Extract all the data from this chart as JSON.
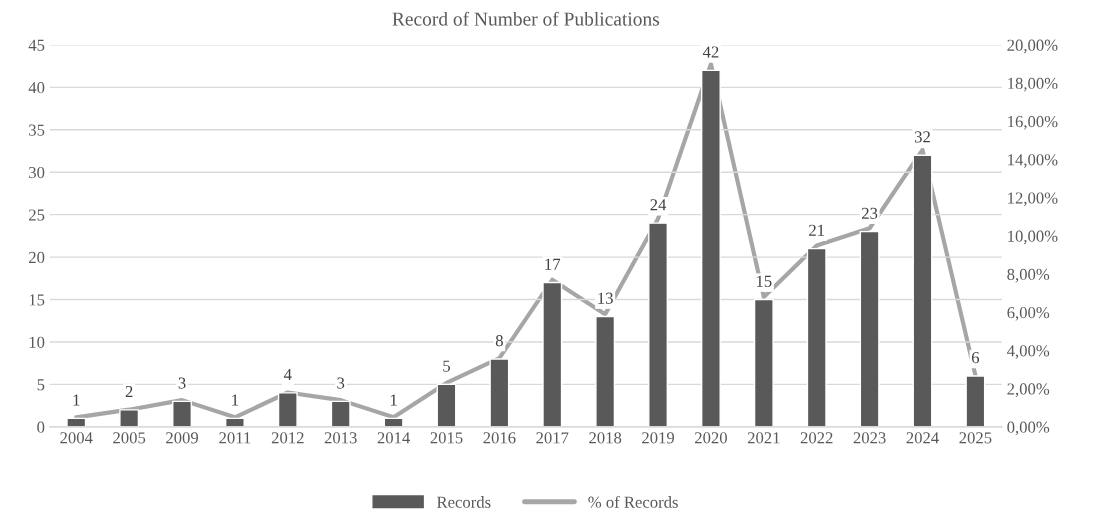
{
  "chart_data": {
    "type": "bar",
    "title": "Record of Number of Publications",
    "categories": [
      "2004",
      "2005",
      "2009",
      "2011",
      "2012",
      "2013",
      "2014",
      "2015",
      "2016",
      "2017",
      "2018",
      "2019",
      "2020",
      "2021",
      "2022",
      "2023",
      "2024",
      "2025"
    ],
    "series": [
      {
        "name": "Records",
        "color": "#595959",
        "values": [
          1,
          2,
          3,
          1,
          4,
          3,
          1,
          5,
          8,
          17,
          13,
          24,
          42,
          15,
          21,
          23,
          32,
          6
        ],
        "value_labels": [
          "1",
          "2",
          "3",
          "1",
          "4",
          "3",
          "1",
          "5",
          "8",
          "17",
          "13",
          "24",
          "42",
          "15",
          "21",
          "23",
          "32",
          "6"
        ]
      },
      {
        "name": "% of Records",
        "type": "line",
        "axis": "y2",
        "color": "#a6a6a6",
        "values": [
          0.5,
          0.9,
          1.4,
          0.5,
          1.8,
          1.4,
          0.5,
          2.3,
          3.6,
          7.7,
          5.9,
          10.9,
          19.0,
          6.8,
          9.5,
          10.4,
          14.5,
          2.7
        ]
      }
    ],
    "ylim": [
      0,
      45
    ],
    "yticks": [
      0,
      5,
      10,
      15,
      20,
      25,
      30,
      35,
      40,
      45
    ],
    "y2lim": [
      0,
      20
    ],
    "y2ticks": [
      {
        "value": 0,
        "label": "0,00%"
      },
      {
        "value": 2,
        "label": "2,00%"
      },
      {
        "value": 4,
        "label": "4,00%"
      },
      {
        "value": 6,
        "label": "6,00%"
      },
      {
        "value": 8,
        "label": "8,00%"
      },
      {
        "value": 10,
        "label": "10,00%"
      },
      {
        "value": 12,
        "label": "12,00%"
      },
      {
        "value": 14,
        "label": "14,00%"
      },
      {
        "value": 16,
        "label": "16,00%"
      },
      {
        "value": 18,
        "label": "18,00%"
      },
      {
        "value": 20,
        "label": "20,00%"
      }
    ],
    "grid": "y",
    "legend": "bottom",
    "marker": "none",
    "line_style": "solid"
  }
}
